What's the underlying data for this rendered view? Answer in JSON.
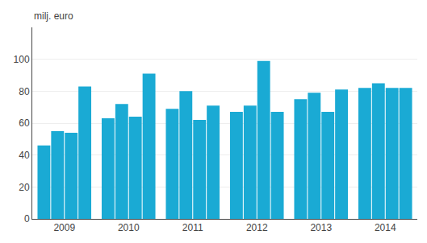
{
  "chart_data": {
    "type": "bar",
    "ylabel": "milj. euro",
    "categories": [
      "2009",
      "2010",
      "2011",
      "2012",
      "2013",
      "2014"
    ],
    "series": [
      {
        "color": "#1aaad4",
        "values": [
          46,
          63,
          69,
          67,
          75,
          82
        ]
      },
      {
        "color": "#1aaad4",
        "values": [
          55,
          72,
          80,
          71,
          79,
          85
        ]
      },
      {
        "color": "#1aaad4",
        "values": [
          54,
          64,
          62,
          99,
          67,
          82
        ]
      },
      {
        "color": "#1aaad4",
        "values": [
          83,
          91,
          71,
          67,
          81,
          82
        ]
      }
    ],
    "ylim": [
      0,
      120
    ],
    "yticks": [
      0,
      20,
      40,
      60,
      80,
      100
    ],
    "grid": true
  }
}
